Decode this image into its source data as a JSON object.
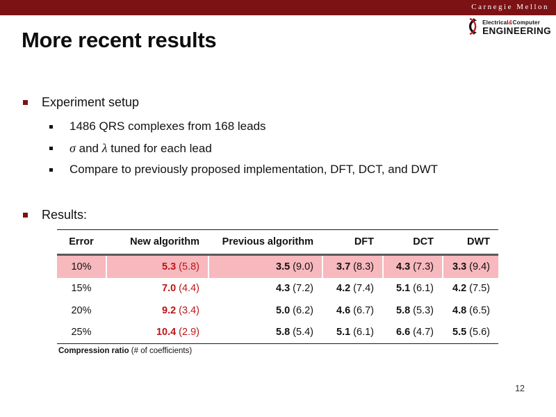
{
  "colors": {
    "maroon": "#7D1215",
    "highlight_pink": "#F7B8BE",
    "accent_red": "#BB1518",
    "header_rule_gray": "#595959"
  },
  "banner": {
    "wordmark": "Carnegie Mellon"
  },
  "logo": {
    "line1_left": "Electrical",
    "amp": "&",
    "line1_right": "Computer",
    "line2": "ENGINEERING"
  },
  "title": "More recent results",
  "bullets": {
    "setup_label": "Experiment setup",
    "sub1": "1486 QRS complexes from 168 leads",
    "sub2_sigma": "σ",
    "sub2_mid": " and ",
    "sub2_lambda": "λ",
    "sub2_rest": " tuned for each lead",
    "sub3": "Compare to previously proposed implementation, DFT, DCT, and DWT",
    "results_label": "Results:"
  },
  "table": {
    "headers": [
      "Error",
      "New algorithm",
      "Previous algorithm",
      "DFT",
      "DCT",
      "DWT"
    ],
    "red_column_index": 0,
    "rows": [
      {
        "error": "10%",
        "highlight": true,
        "values": [
          [
            "5.3",
            "(5.8)"
          ],
          [
            "3.5",
            "(9.0)"
          ],
          [
            "3.7",
            "(8.3)"
          ],
          [
            "4.3",
            "(7.3)"
          ],
          [
            "3.3",
            "(9.4)"
          ]
        ]
      },
      {
        "error": "15%",
        "highlight": false,
        "values": [
          [
            "7.0",
            "(4.4)"
          ],
          [
            "4.3",
            "(7.2)"
          ],
          [
            "4.2",
            "(7.4)"
          ],
          [
            "5.1",
            "(6.1)"
          ],
          [
            "4.2",
            "(7.5)"
          ]
        ]
      },
      {
        "error": "20%",
        "highlight": false,
        "values": [
          [
            "9.2",
            "(3.4)"
          ],
          [
            "5.0",
            "(6.2)"
          ],
          [
            "4.6",
            "(6.7)"
          ],
          [
            "5.8",
            "(5.3)"
          ],
          [
            "4.8",
            "(6.5)"
          ]
        ]
      },
      {
        "error": "25%",
        "highlight": false,
        "values": [
          [
            "10.4",
            "(2.9)"
          ],
          [
            "5.8",
            "(5.4)"
          ],
          [
            "5.1",
            "(6.1)"
          ],
          [
            "6.6",
            "(4.7)"
          ],
          [
            "5.5",
            "(5.6)"
          ]
        ]
      }
    ],
    "caption_bold": "Compression ratio",
    "caption_rest": " (# of coefficients)"
  },
  "page_number": "12"
}
